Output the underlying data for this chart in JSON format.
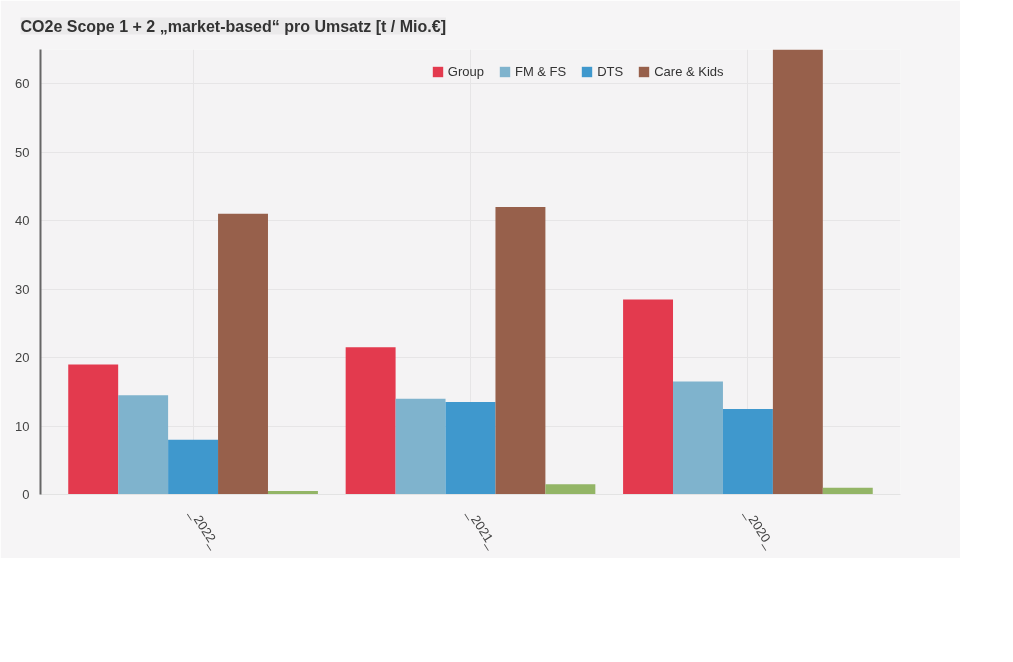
{
  "chart_data": {
    "type": "bar",
    "title": "CO2e Scope 1 + 2 „market-based“ pro Umsatz [t / Mio.€]",
    "categories": [
      "_2022_",
      "_2021_",
      "_2020_"
    ],
    "series": [
      {
        "name": "Group",
        "color": "#e33a4e",
        "values": [
          19,
          21.5,
          28.5
        ]
      },
      {
        "name": "FM & FS",
        "color": "#7fb3cd",
        "values": [
          14.5,
          14,
          16.5
        ]
      },
      {
        "name": "DTS",
        "color": "#3f98cd",
        "values": [
          8,
          13.5,
          12.5
        ]
      },
      {
        "name": "Care & Kids",
        "color": "#97604b",
        "values": [
          41,
          42,
          65
        ]
      },
      {
        "color": "#93b566",
        "values": [
          0.5,
          1.5,
          1
        ]
      }
    ],
    "ylim": [
      0,
      65
    ],
    "yticks": [
      0,
      10,
      20,
      30,
      40,
      50,
      60
    ],
    "grid": true,
    "legend": "top right"
  }
}
